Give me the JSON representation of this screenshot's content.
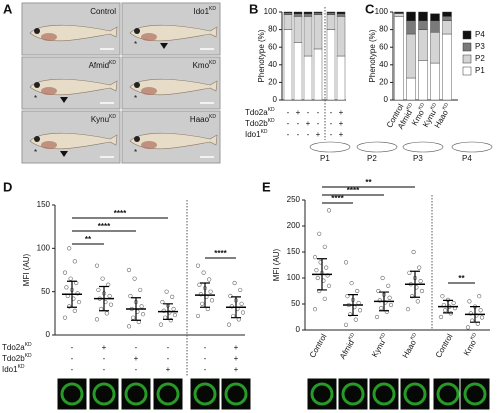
{
  "fish_panel": {
    "panel": "A",
    "asterisk": "*",
    "images": [
      {
        "name": "Control"
      },
      {
        "name": "Ido1",
        "sup": "KD"
      },
      {
        "name": "Afmid",
        "sup": "KD"
      },
      {
        "name": "Kmo",
        "sup": "KD"
      },
      {
        "name": "Kynu",
        "sup": "KD"
      },
      {
        "name": "Haao",
        "sup": "KD"
      }
    ]
  },
  "chart_data": [
    {
      "panel": "B",
      "type": "stacked_bar",
      "ylabel": "Phenotype (%)",
      "categories": [
        null,
        null,
        null,
        null,
        null,
        null
      ],
      "ylim": [
        0,
        100
      ],
      "yticks": [
        0,
        20,
        40,
        60,
        80,
        100
      ],
      "series": [
        {
          "color": "#ffffff",
          "values": [
            80,
            65,
            50,
            58,
            80,
            50
          ]
        },
        {
          "color": "#d4d4d4",
          "values": [
            17,
            30,
            45,
            39,
            17,
            45
          ]
        },
        {
          "color": "#7a7a7a",
          "values": [
            2,
            3,
            3,
            2,
            2,
            3
          ]
        },
        {
          "color": "#111111",
          "values": [
            1,
            2,
            2,
            1,
            1,
            2
          ]
        }
      ],
      "conditions": [
        {
          "name": "Tdo2a",
          "sup": "KD",
          "values": [
            "-",
            "+",
            "-",
            "-",
            "-",
            "+"
          ]
        },
        {
          "name": "Tdo2b",
          "sup": "KD",
          "values": [
            "-",
            "-",
            "+",
            "-",
            "-",
            "+"
          ]
        },
        {
          "name": "Ido1",
          "sup": "KD",
          "values": [
            "-",
            "-",
            "-",
            "+",
            "-",
            "+"
          ]
        }
      ]
    },
    {
      "panel": "C",
      "type": "stacked_bar",
      "ylabel": "Phenotype (%)",
      "categories": [
        {
          "name": "Control"
        },
        {
          "name": "Afmid",
          "sup": "KD"
        },
        {
          "name": "Kmo",
          "sup": "KD"
        },
        {
          "name": "Kynu",
          "sup": "KD"
        },
        {
          "name": "Haao",
          "sup": "KD"
        }
      ],
      "ylim": [
        0,
        100
      ],
      "yticks": [
        0,
        20,
        40,
        60,
        80,
        100
      ],
      "legend": "right",
      "series": [
        {
          "name": "P1",
          "color": "#ffffff",
          "values": [
            95,
            25,
            45,
            42,
            75
          ]
        },
        {
          "name": "P2",
          "color": "#d4d4d4",
          "values": [
            3,
            50,
            35,
            35,
            15
          ]
        },
        {
          "name": "P3",
          "color": "#7a7a7a",
          "values": [
            1,
            15,
            10,
            13,
            5
          ]
        },
        {
          "name": "P4",
          "color": "#111111",
          "values": [
            1,
            10,
            10,
            8,
            5
          ]
        }
      ]
    },
    {
      "panel": "D",
      "type": "dot",
      "ylabel": "MFI (AU)",
      "ylim": [
        0,
        150
      ],
      "yticks": [
        0,
        50,
        100,
        150
      ],
      "groups": [
        {
          "points": [
            20,
            28,
            33,
            38,
            42,
            45,
            48,
            52,
            55,
            60,
            65,
            72,
            85,
            100
          ],
          "mean": 47,
          "sd": 15
        },
        {
          "points": [
            18,
            25,
            30,
            35,
            38,
            42,
            45,
            48,
            52,
            58,
            65,
            80
          ],
          "mean": 42,
          "sd": 14
        },
        {
          "points": [
            10,
            15,
            20,
            24,
            27,
            30,
            33,
            38,
            45,
            52,
            65,
            75
          ],
          "mean": 30,
          "sd": 13
        },
        {
          "points": [
            12,
            17,
            20,
            23,
            26,
            28,
            30,
            34,
            38,
            44,
            50
          ],
          "mean": 27,
          "sd": 9
        },
        {
          "points": [
            22,
            30,
            36,
            40,
            44,
            47,
            50,
            54,
            58,
            64,
            72,
            80
          ],
          "mean": 46,
          "sd": 14
        },
        {
          "points": [
            12,
            18,
            22,
            26,
            30,
            33,
            36,
            40,
            45,
            52,
            60
          ],
          "mean": 32,
          "sd": 12
        }
      ],
      "annotations": [
        {
          "text": "****",
          "groups": [
            0,
            3
          ]
        },
        {
          "text": "****",
          "groups": [
            0,
            2
          ]
        },
        {
          "text": "**",
          "groups": [
            0,
            1
          ]
        },
        {
          "text": "****",
          "groups": [
            4,
            5
          ]
        }
      ],
      "conditions": [
        {
          "name": "Tdo2a",
          "sup": "KD",
          "values": [
            "-",
            "+",
            "-",
            "-",
            "-",
            "+"
          ]
        },
        {
          "name": "Tdo2b",
          "sup": "KD",
          "values": [
            "-",
            "-",
            "+",
            "-",
            "-",
            "+"
          ]
        },
        {
          "name": "Ido1",
          "sup": "KD",
          "values": [
            "-",
            "-",
            "-",
            "+",
            "-",
            "+"
          ]
        }
      ]
    },
    {
      "panel": "E",
      "type": "dot",
      "ylabel": "MFI (AU)",
      "ylim": [
        0,
        250
      ],
      "yticks": [
        0,
        50,
        100,
        150,
        200,
        250
      ],
      "categories": [
        {
          "name": "Control"
        },
        {
          "name": "Afmid",
          "sup": "KD"
        },
        {
          "name": "Kynu",
          "sup": "KD"
        },
        {
          "name": "Haao",
          "sup": "KD"
        },
        {
          "name": "Control"
        },
        {
          "name": "Kmo",
          "sup": "KD"
        }
      ],
      "groups": [
        {
          "points": [
            40,
            60,
            75,
            85,
            95,
            100,
            105,
            110,
            115,
            120,
            130,
            140,
            160,
            185,
            230
          ],
          "mean": 107,
          "sd": 30
        },
        {
          "points": [
            10,
            20,
            30,
            38,
            44,
            48,
            52,
            58,
            65,
            75,
            90,
            130
          ],
          "mean": 48,
          "sd": 20
        },
        {
          "points": [
            25,
            35,
            42,
            48,
            53,
            57,
            62,
            68,
            75,
            85,
            100
          ],
          "mean": 55,
          "sd": 18
        },
        {
          "points": [
            40,
            55,
            65,
            75,
            82,
            88,
            94,
            100,
            110,
            120,
            150
          ],
          "mean": 88,
          "sd": 25
        },
        {
          "points": [
            25,
            32,
            38,
            42,
            45,
            48,
            52,
            58,
            65
          ],
          "mean": 45,
          "sd": 12
        },
        {
          "points": [
            5,
            12,
            18,
            24,
            28,
            32,
            38,
            45,
            55,
            65
          ],
          "mean": 30,
          "sd": 15
        }
      ],
      "annotations": [
        {
          "text": "**",
          "groups": [
            0,
            3
          ]
        },
        {
          "text": "****",
          "groups": [
            0,
            2
          ]
        },
        {
          "text": "****",
          "groups": [
            0,
            1
          ]
        },
        {
          "text": "**",
          "groups": [
            4,
            5
          ]
        }
      ]
    }
  ]
}
